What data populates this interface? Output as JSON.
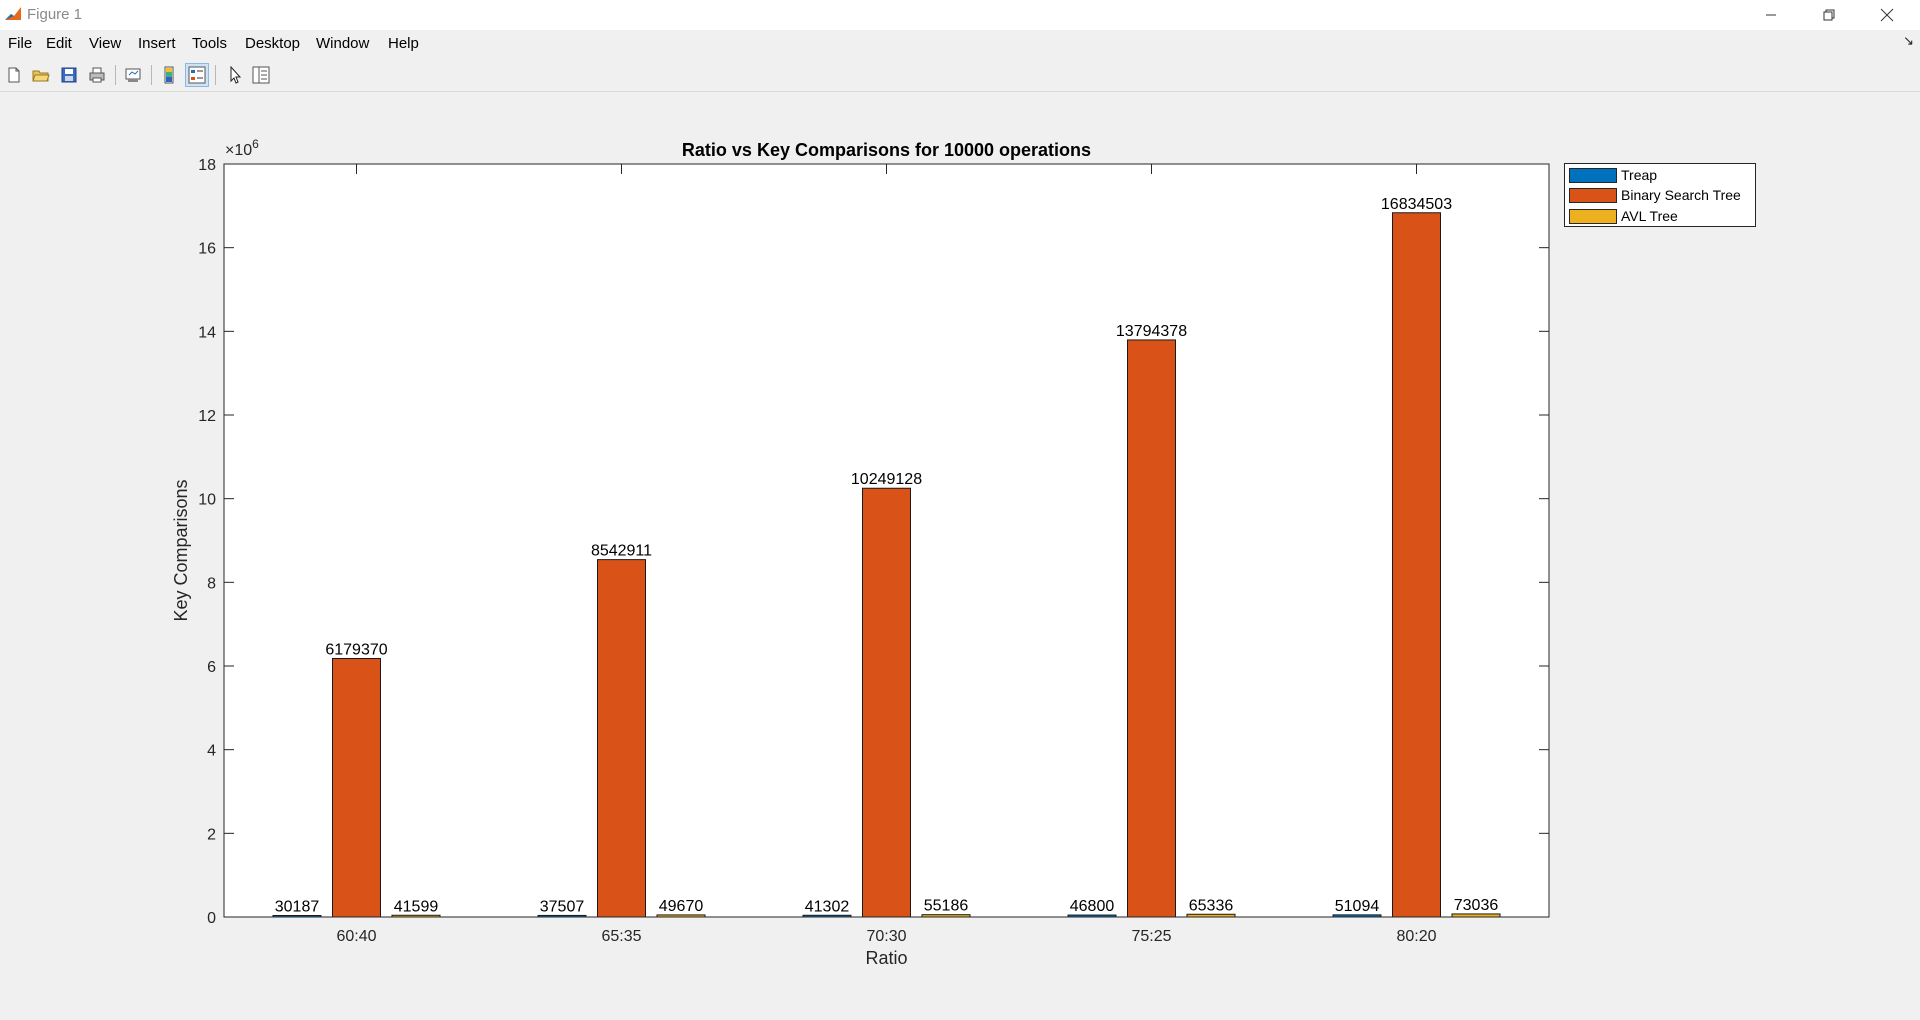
{
  "window": {
    "title": "Figure 1",
    "minimize_icon": "minimize-icon",
    "maximize_icon": "restore-icon",
    "close_icon": "close-icon"
  },
  "menu": {
    "items": [
      "File",
      "Edit",
      "View",
      "Insert",
      "Tools",
      "Desktop",
      "Window",
      "Help"
    ],
    "dock_icon": "undock-arrow-icon"
  },
  "toolbar": {
    "buttons": [
      "new-figure-icon",
      "open-file-icon",
      "save-figure-icon",
      "print-figure-icon",
      "link-plot-icon",
      "insert-colorbar-icon",
      "insert-legend-icon",
      "edit-plot-icon",
      "property-inspector-icon"
    ]
  },
  "colors": {
    "treap": "#0072BD",
    "bst": "#D95319",
    "avl": "#EDB120"
  },
  "chart_data": {
    "type": "bar",
    "title": "Ratio vs Key Comparisons for 10000 operations",
    "xlabel": "Ratio",
    "ylabel": "Key Comparisons",
    "exponent_label": "×10",
    "exponent_power": "6",
    "categories": [
      "60:40",
      "65:35",
      "70:30",
      "75:25",
      "80:20"
    ],
    "ylim": [
      0,
      18000000
    ],
    "yticks": [
      0,
      2000000,
      4000000,
      6000000,
      8000000,
      10000000,
      12000000,
      14000000,
      16000000,
      18000000
    ],
    "ytick_labels": [
      "0",
      "2",
      "4",
      "6",
      "8",
      "10",
      "12",
      "14",
      "16",
      "18"
    ],
    "grid": false,
    "legend_position": "outside-top-right",
    "series": [
      {
        "name": "Treap",
        "values": [
          30187,
          37507,
          41302,
          46800,
          51094
        ]
      },
      {
        "name": "Binary Search Tree",
        "values": [
          6179370,
          8542911,
          10249128,
          13794378,
          16834503
        ]
      },
      {
        "name": "AVL Tree",
        "values": [
          41599,
          49670,
          55186,
          65336,
          73036
        ]
      }
    ]
  }
}
